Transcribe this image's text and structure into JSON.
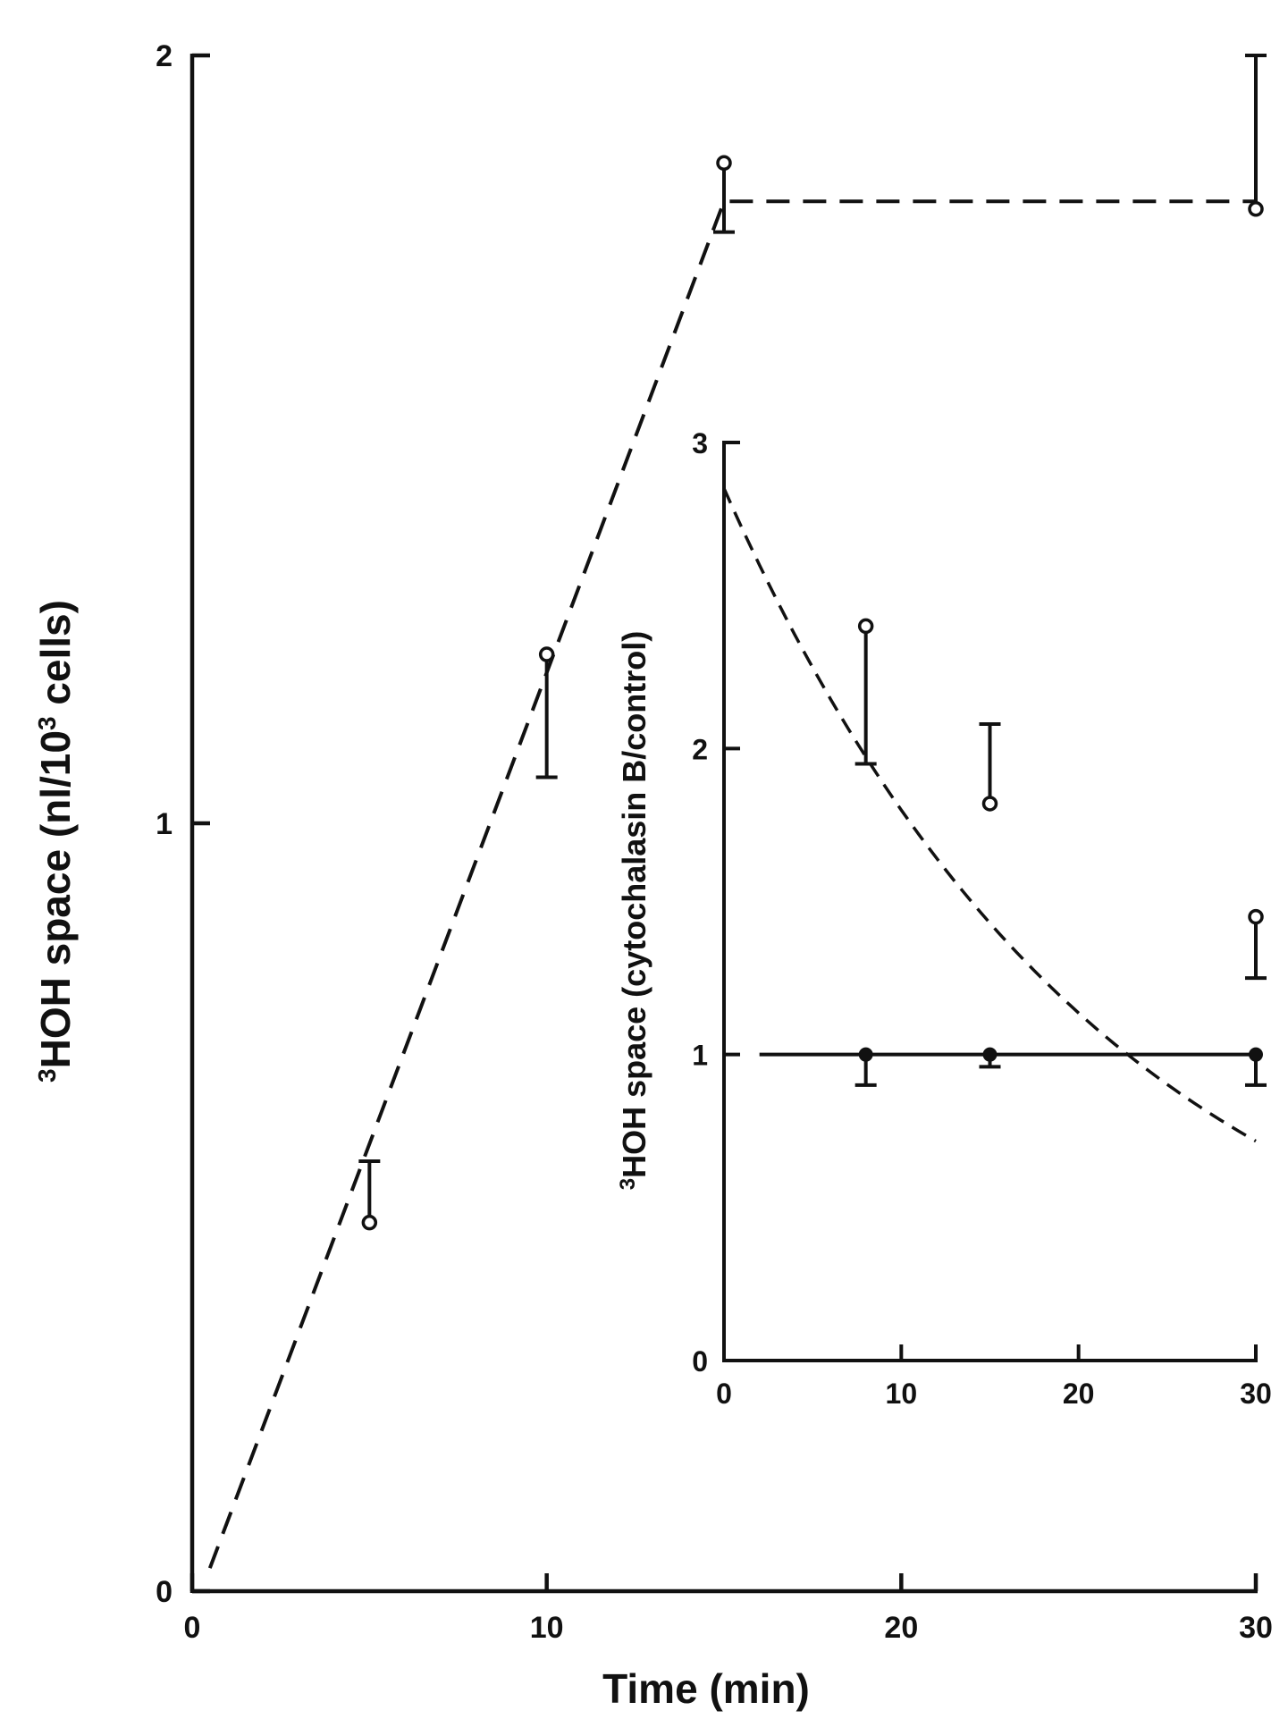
{
  "chart_data": [
    {
      "id": "main",
      "type": "line",
      "xlabel": "Time (min)",
      "ylabel": {
        "sup": "3",
        "text": "HOH space (nl/10",
        "sup2": "3",
        "tail": " cells)"
      },
      "xlim": [
        0,
        30
      ],
      "ylim": [
        0,
        2
      ],
      "xticks": [
        0,
        10,
        20,
        30
      ],
      "yticks": [
        0,
        1,
        2
      ],
      "grid": false,
      "series": [
        {
          "marker": "open-circle",
          "line_style": "dashed",
          "points": [
            {
              "x": 5,
              "y": 0.48,
              "err_end": 0.56
            },
            {
              "x": 10,
              "y": 1.22,
              "err_end": 1.06
            },
            {
              "x": 15,
              "y": 1.86,
              "err_end": 1.77
            },
            {
              "x": 30,
              "y": 1.8,
              "err_end": 2.0
            }
          ],
          "fit_line": [
            [
              0.5,
              0.03
            ],
            [
              15,
              1.81
            ],
            [
              30,
              1.81
            ]
          ]
        }
      ]
    },
    {
      "id": "inset",
      "type": "line",
      "xlabel": "",
      "ylabel": {
        "sup": "3",
        "text": "HOH space (cytochalasin B/control)"
      },
      "xlim": [
        0,
        30
      ],
      "ylim": [
        0,
        3
      ],
      "xticks": [
        0,
        10,
        20,
        30
      ],
      "yticks": [
        0,
        1,
        2,
        3
      ],
      "grid": false,
      "series": [
        {
          "marker": "open-circle",
          "line_style": "dashed",
          "points": [
            {
              "x": 8,
              "y": 2.4,
              "err_end": 1.95
            },
            {
              "x": 15,
              "y": 1.82,
              "err_end": 2.08
            },
            {
              "x": 30,
              "y": 1.45,
              "err_end": 1.25
            }
          ],
          "fit_curve": {
            "y0": 2.85,
            "k": 0.046,
            "x_from": 0,
            "x_to": 30
          }
        },
        {
          "marker": "filled-circle",
          "line_style": "solid",
          "points": [
            {
              "x": 8,
              "y": 1.0,
              "err_end": 0.9
            },
            {
              "x": 15,
              "y": 1.0,
              "err_end": 0.96
            },
            {
              "x": 30,
              "y": 1.0,
              "err_end": 0.9
            }
          ],
          "fit_line": [
            [
              2,
              1.0
            ],
            [
              30,
              1.0
            ]
          ]
        }
      ]
    }
  ]
}
